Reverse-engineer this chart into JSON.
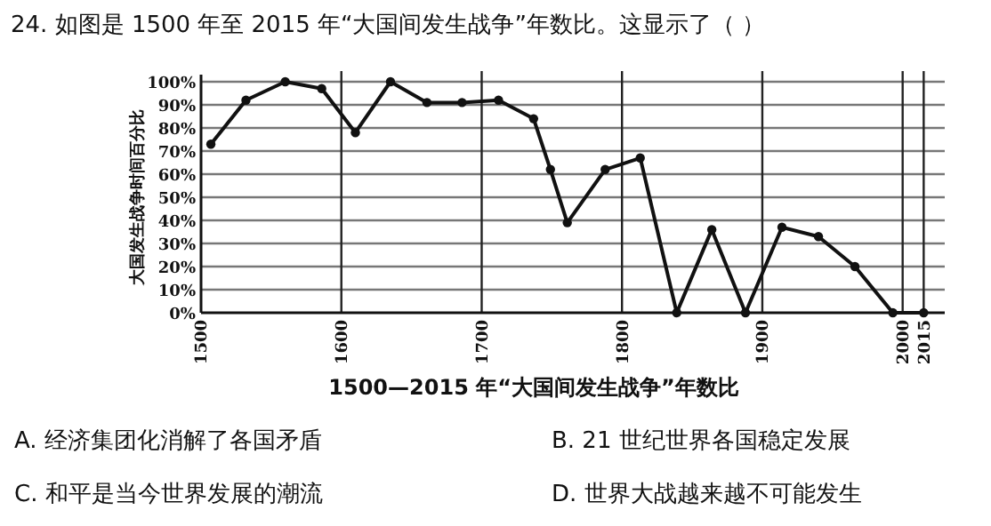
{
  "chart_data": {
    "type": "line",
    "title": "24. 如图是 1500 年至 2015 年“大国间发生战争”年数比。这显示了（ ）",
    "xlabel": "1500—2015 年“大国间发生战争”年数比",
    "ylabel": "大国发生战争时间百分比",
    "x": [
      1507,
      1532,
      1560,
      1586,
      1610,
      1635,
      1661,
      1686,
      1712,
      1737,
      1749,
      1761,
      1788,
      1813,
      1839,
      1864,
      1888,
      1914,
      1940,
      1966,
      1993,
      2015
    ],
    "series": [
      {
        "color": "#111111",
        "values": [
          73,
          92,
          100,
          97,
          78,
          100,
          91,
          91,
          92,
          84,
          62,
          39,
          62,
          67,
          0,
          36,
          0,
          37,
          33,
          20,
          0,
          0
        ]
      }
    ],
    "xlim": [
      1500,
      2030
    ],
    "xticks": [
      1500,
      1600,
      1700,
      1800,
      1900,
      2000,
      2015
    ],
    "ylim": [
      0,
      100
    ],
    "yticks": [
      {
        "value": 0,
        "label": "0%"
      },
      {
        "value": 10,
        "label": "10%"
      },
      {
        "value": 20,
        "label": "20%"
      },
      {
        "value": 30,
        "label": "30%"
      },
      {
        "value": 40,
        "label": "40%"
      },
      {
        "value": 50,
        "label": "50%"
      },
      {
        "value": 60,
        "label": "60%"
      },
      {
        "value": 70,
        "label": "70%"
      },
      {
        "value": 80,
        "label": "80%"
      },
      {
        "value": 90,
        "label": "90%"
      },
      {
        "value": 100,
        "label": "100%"
      }
    ],
    "grid": true,
    "marker": "circle",
    "line_style": "solid",
    "annotations": [
      "A. 经济集团化消解了各国矛盾",
      "B. 21 世纪世界各国稳定发展",
      "C. 和平是当今世界发展的潮流",
      "D. 世界大战越来越不可能发生"
    ]
  }
}
